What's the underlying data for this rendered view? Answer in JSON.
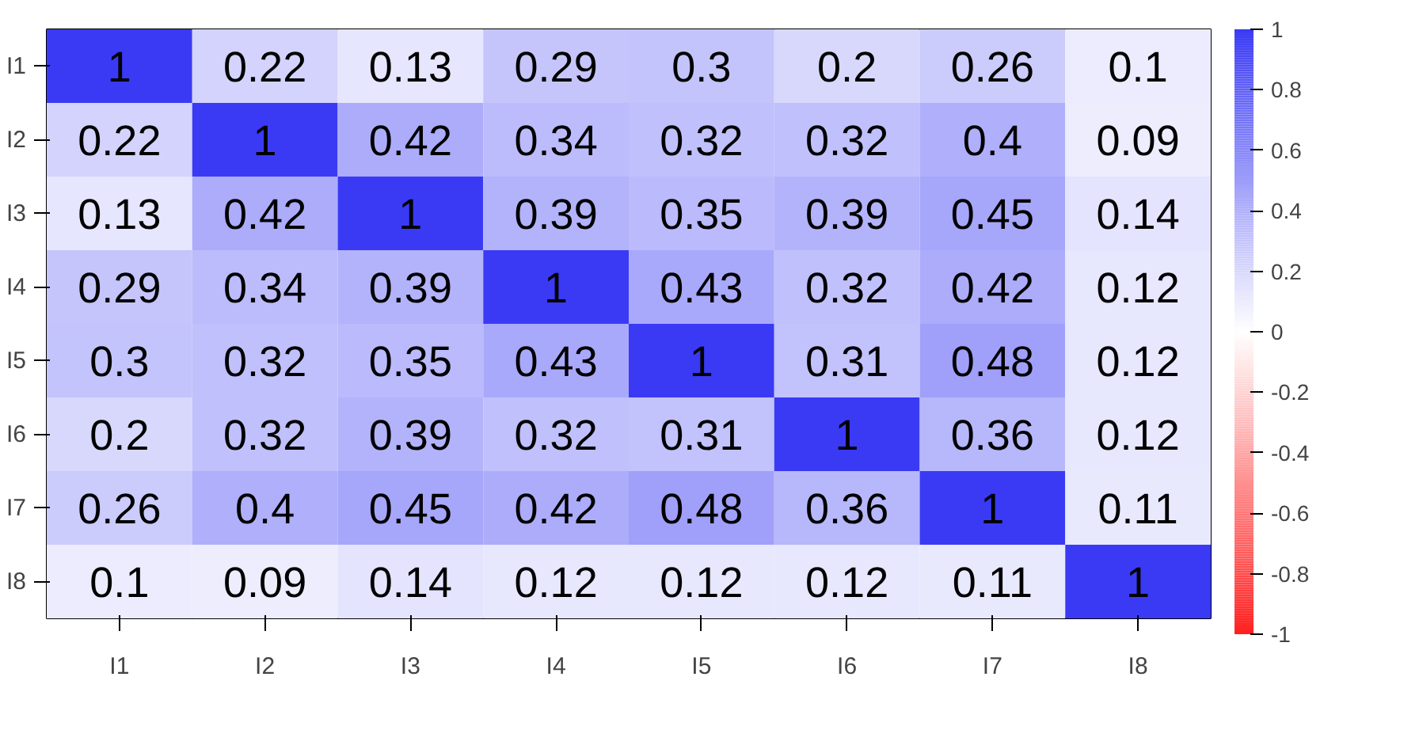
{
  "chart_data": {
    "type": "heatmap",
    "categories": [
      "I1",
      "I2",
      "I3",
      "I4",
      "I5",
      "I6",
      "I7",
      "I8"
    ],
    "y_categories": [
      "I1",
      "I2",
      "I3",
      "I4",
      "I5",
      "I6",
      "I7",
      "I8"
    ],
    "cells": [
      [
        1,
        0.22,
        0.13,
        0.29,
        0.3,
        0.2,
        0.26,
        0.1
      ],
      [
        0.22,
        1,
        0.42,
        0.34,
        0.32,
        0.32,
        0.4,
        0.09
      ],
      [
        0.13,
        0.42,
        1,
        0.39,
        0.35,
        0.39,
        0.45,
        0.14
      ],
      [
        0.29,
        0.34,
        0.39,
        1,
        0.43,
        0.32,
        0.42,
        0.12
      ],
      [
        0.3,
        0.32,
        0.35,
        0.43,
        1,
        0.31,
        0.48,
        0.12
      ],
      [
        0.2,
        0.32,
        0.39,
        0.32,
        0.31,
        1,
        0.36,
        0.12
      ],
      [
        0.26,
        0.4,
        0.45,
        0.42,
        0.48,
        0.36,
        1,
        0.11
      ],
      [
        0.1,
        0.09,
        0.14,
        0.12,
        0.12,
        0.12,
        0.11,
        1
      ]
    ],
    "colors": [
      "#ff2020",
      "#ffffff",
      "#3a3af5"
    ],
    "clim": [
      -1,
      1
    ],
    "cticks": [
      1,
      0.8,
      0.6,
      0.4,
      0.2,
      0,
      -0.2,
      -0.4,
      -0.6,
      -0.8,
      -1
    ],
    "data_labels": true
  }
}
